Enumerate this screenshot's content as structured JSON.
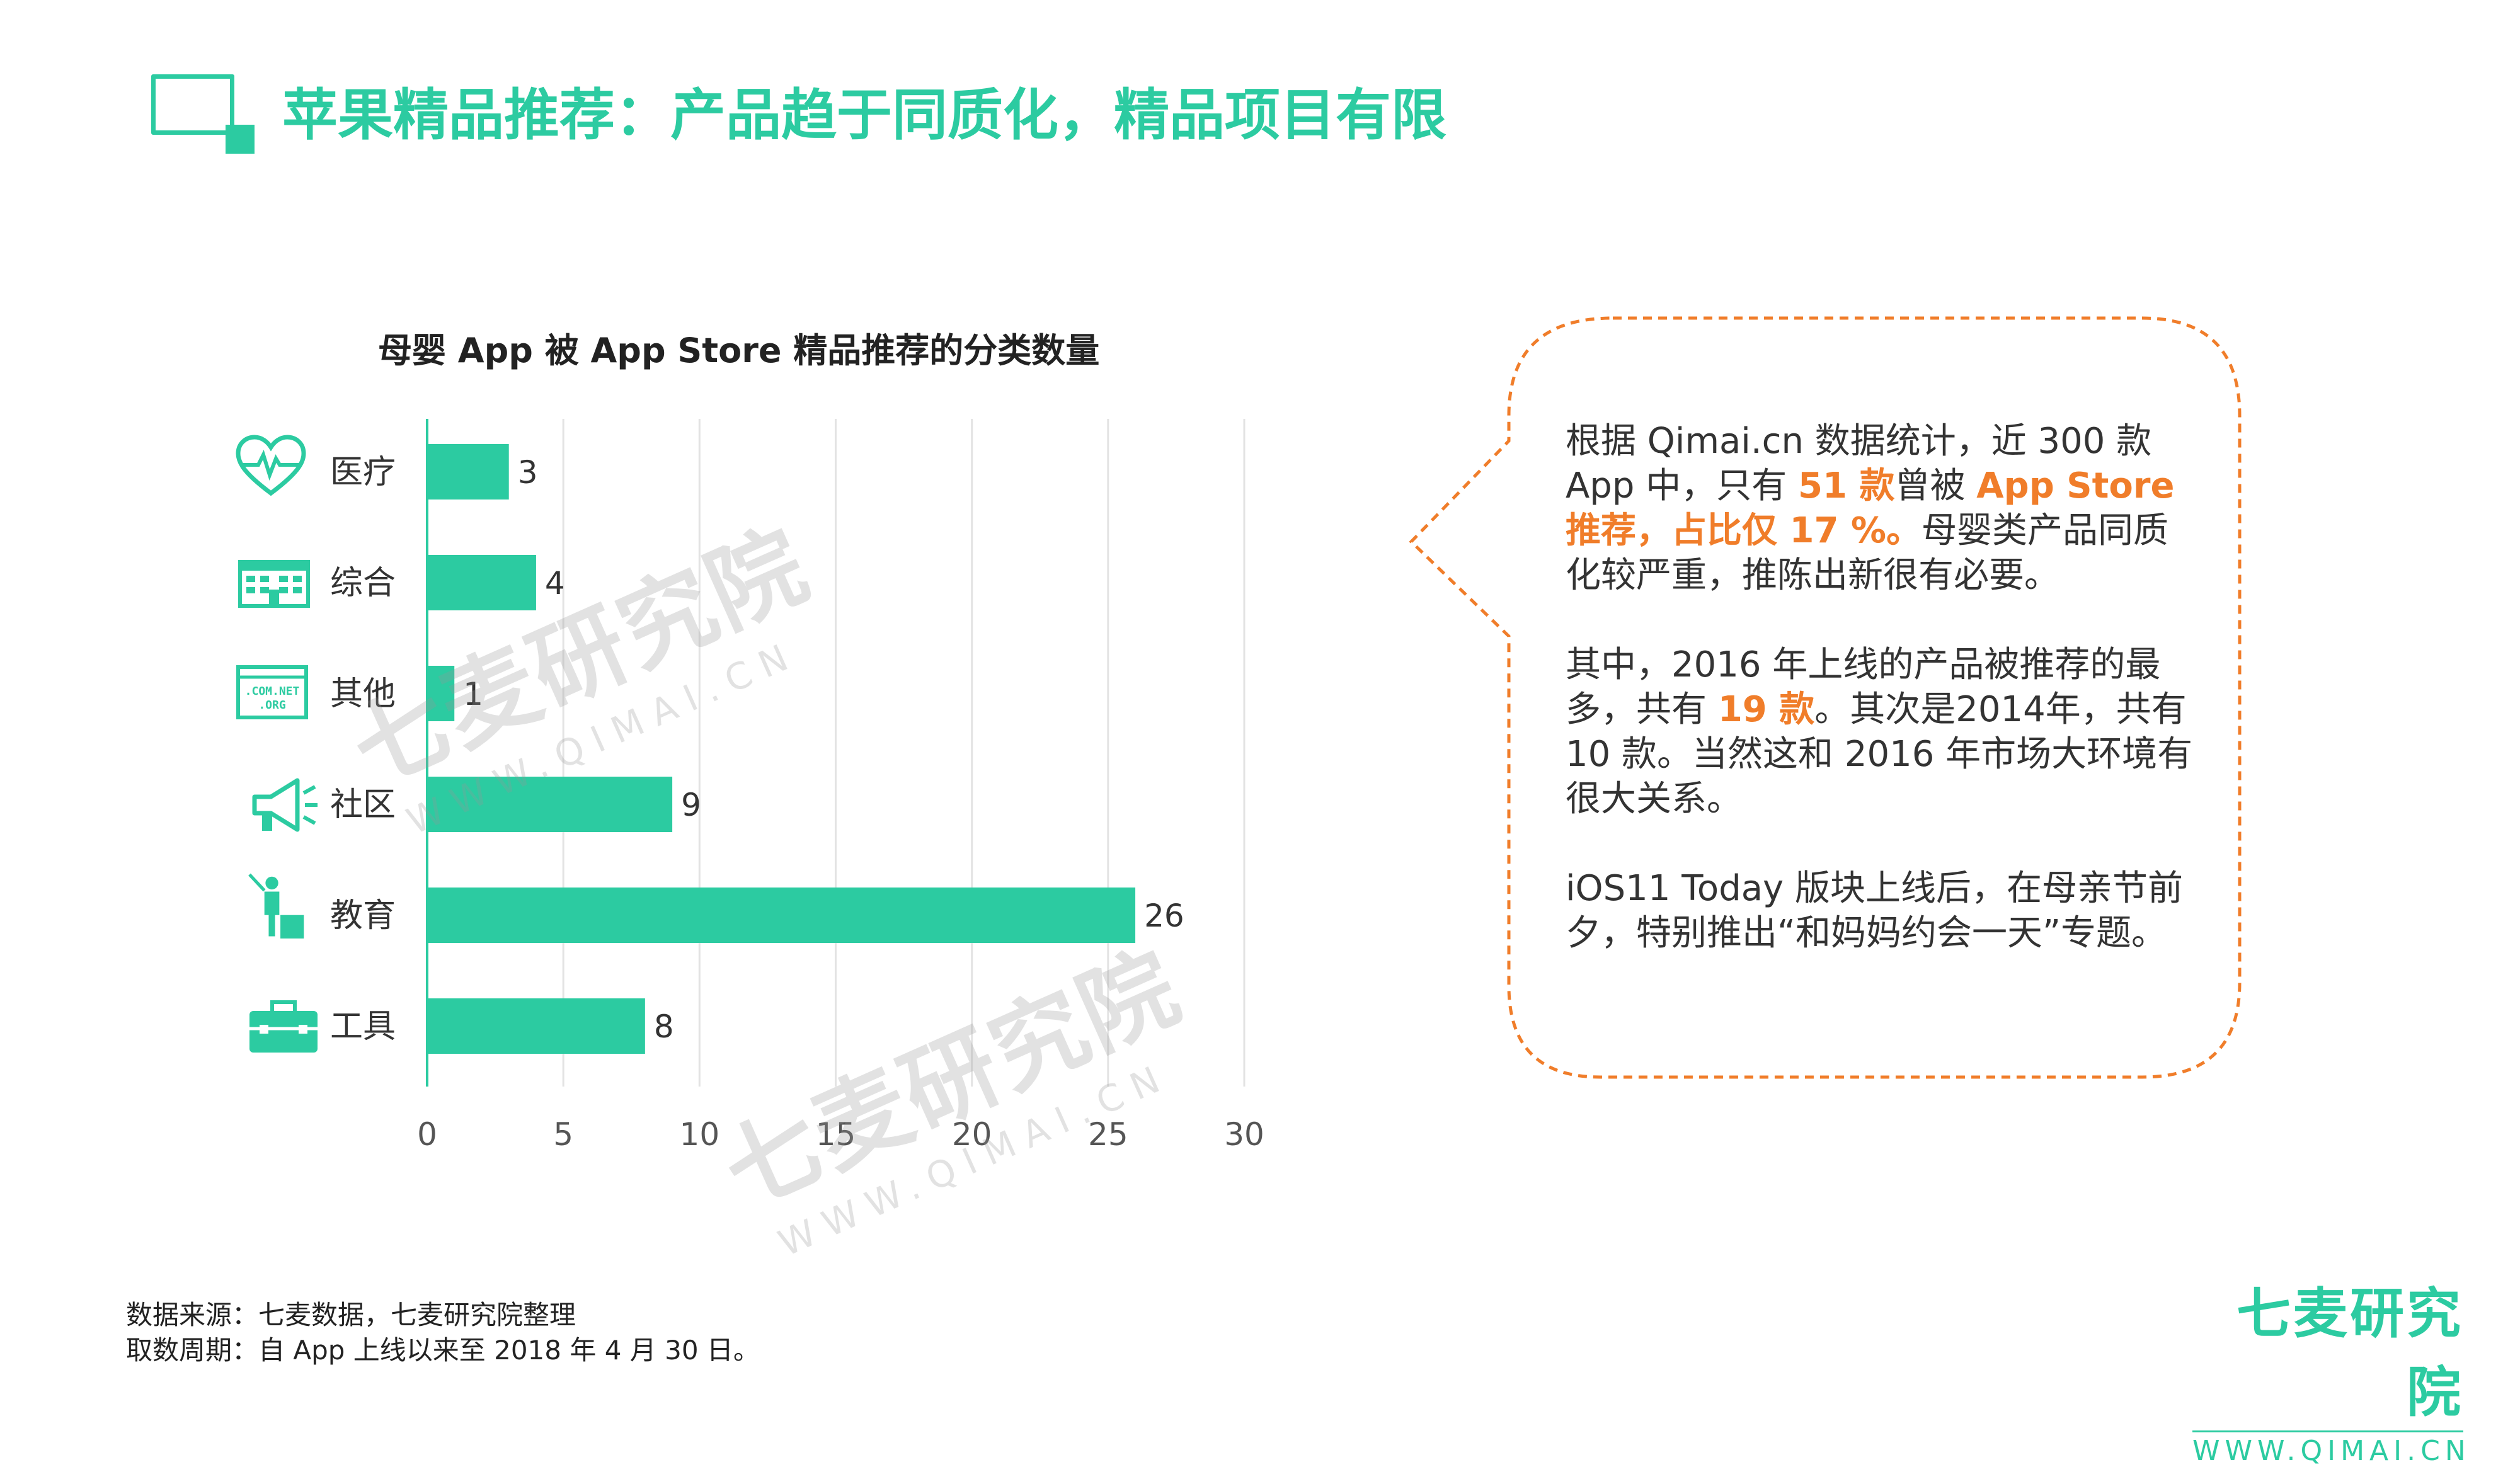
{
  "page_title": "苹果精品推荐：产品趋于同质化，精品项目有限",
  "chart_data": {
    "type": "bar",
    "orientation": "horizontal",
    "title": "母婴 App 被 App Store 精品推荐的分类数量",
    "categories": [
      "医疗",
      "综合",
      "其他",
      "社区",
      "教育",
      "工具"
    ],
    "values": [
      3,
      4,
      1,
      9,
      26,
      8
    ],
    "xlim": [
      0,
      30
    ],
    "x_ticks": [
      "0",
      "5",
      "10",
      "15",
      "20",
      "25",
      "30"
    ],
    "grid": "vertical",
    "bar_color": "#2ccba1"
  },
  "category_icons": [
    "heartbeat-icon",
    "building-icon",
    "domain-icon",
    "megaphone-icon",
    "teacher-icon",
    "toolbox-icon"
  ],
  "callout": {
    "p1_a": "根据  Qimai.cn 数据统计，近 300 款 App 中，只有 ",
    "p1_hl1": "51 款",
    "p1_b": "曾被 ",
    "p1_hl2": "App Store 推荐，占比仅 17 %。",
    "p1_c": "母婴类产品同质化较严重，推陈出新很有必要。",
    "p2_a": "其中，2016 年上线的产品被推荐的最多，共有 ",
    "p2_hl": "19 款",
    "p2_b": "。其次是2014年，共有 10  款。当然这和  2016 年市场大环境有很大关系。",
    "p3": "iOS11 Today 版块上线后，在母亲节前夕，特别推出“和妈妈约会一天”专题。",
    "border_color": "#f07d2a"
  },
  "watermark": {
    "cn": "七麦研究院",
    "en": "WWW.QIMAI.CN"
  },
  "source": {
    "line1": "数据来源：七麦数据，七麦研究院整理",
    "line2": "取数周期：自 App 上线以来至 2018 年 4 月 30 日。"
  },
  "logo": {
    "cn": "七麦研究院",
    "en": "WWW.QIMAI.CN"
  },
  "colors": {
    "accent": "#2ccba1",
    "highlight": "#f07d2a"
  }
}
